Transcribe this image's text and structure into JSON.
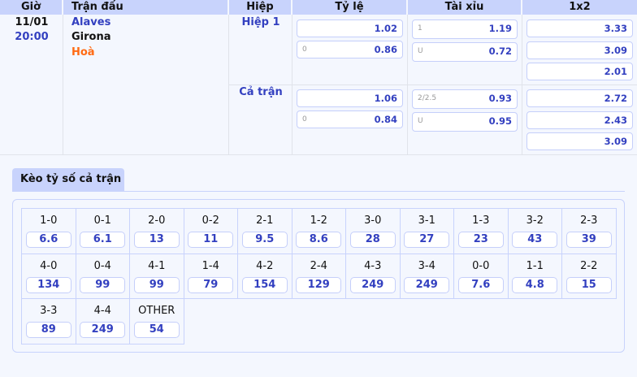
{
  "header": {
    "time": "Giờ",
    "match": "Trận đấu",
    "half": "Hiệp",
    "handicap": "Tỷ lệ",
    "overunder": "Tài xỉu",
    "x12": "1x2"
  },
  "match": {
    "date": "11/01",
    "time": "20:00",
    "home": "Alaves",
    "away": "Girona",
    "draw": "Hoà"
  },
  "periods": [
    {
      "label": "Hiệp 1",
      "handicap": [
        {
          "line": "",
          "odds": "1.02"
        },
        {
          "line": "0",
          "odds": "0.86"
        }
      ],
      "overunder": [
        {
          "line": "1",
          "odds": "1.19"
        },
        {
          "line": "U",
          "odds": "0.72"
        }
      ],
      "x12": [
        "3.33",
        "3.09",
        "2.01"
      ]
    },
    {
      "label": "Cả trận",
      "handicap": [
        {
          "line": "",
          "odds": "1.06"
        },
        {
          "line": "0",
          "odds": "0.84"
        }
      ],
      "overunder": [
        {
          "line": "2/2.5",
          "odds": "0.93"
        },
        {
          "line": "U",
          "odds": "0.95"
        }
      ],
      "x12": [
        "2.72",
        "2.43",
        "3.09"
      ]
    }
  ],
  "correct_score": {
    "tab_label": "Kèo tỷ số cả trận",
    "items": [
      {
        "score": "1-0",
        "odds": "6.6"
      },
      {
        "score": "0-1",
        "odds": "6.1"
      },
      {
        "score": "2-0",
        "odds": "13"
      },
      {
        "score": "0-2",
        "odds": "11"
      },
      {
        "score": "2-1",
        "odds": "9.5"
      },
      {
        "score": "1-2",
        "odds": "8.6"
      },
      {
        "score": "3-0",
        "odds": "28"
      },
      {
        "score": "3-1",
        "odds": "27"
      },
      {
        "score": "1-3",
        "odds": "23"
      },
      {
        "score": "3-2",
        "odds": "43"
      },
      {
        "score": "2-3",
        "odds": "39"
      },
      {
        "score": "4-0",
        "odds": "134"
      },
      {
        "score": "0-4",
        "odds": "99"
      },
      {
        "score": "4-1",
        "odds": "99"
      },
      {
        "score": "1-4",
        "odds": "79"
      },
      {
        "score": "4-2",
        "odds": "154"
      },
      {
        "score": "2-4",
        "odds": "129"
      },
      {
        "score": "4-3",
        "odds": "249"
      },
      {
        "score": "3-4",
        "odds": "249"
      },
      {
        "score": "0-0",
        "odds": "7.6"
      },
      {
        "score": "1-1",
        "odds": "4.8"
      },
      {
        "score": "2-2",
        "odds": "15"
      },
      {
        "score": "3-3",
        "odds": "89"
      },
      {
        "score": "4-4",
        "odds": "249"
      },
      {
        "score": "OTHER",
        "odds": "54"
      }
    ]
  },
  "colors": {
    "header_bg": "#c8d3fc",
    "accent": "#3340c0",
    "draw": "#ff6a13"
  }
}
